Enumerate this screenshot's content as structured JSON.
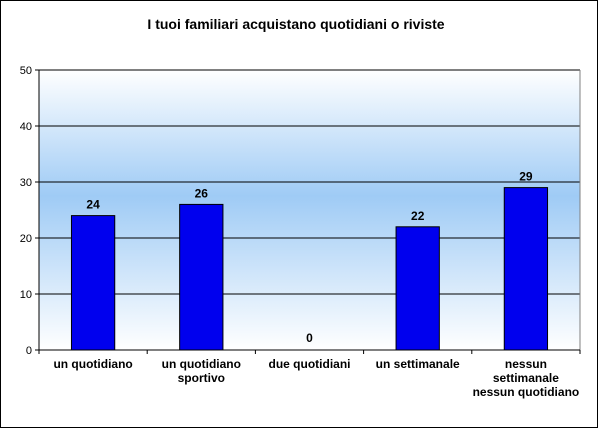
{
  "chart_data": {
    "type": "bar",
    "title": "I tuoi familiari acquistano quotidiani o riviste",
    "categories": [
      [
        "un quotidiano"
      ],
      [
        "un quotidiano",
        "sportivo"
      ],
      [
        "due quotidiani"
      ],
      [
        "un settimanale"
      ],
      [
        "nessun",
        "settimanale",
        "nessun quotidiano"
      ]
    ],
    "values": [
      24,
      26,
      0,
      22,
      29
    ],
    "data_labels": [
      "24",
      "26",
      "0",
      "22",
      "29"
    ],
    "ylim": [
      0,
      50
    ],
    "yticks": [
      "0",
      "10",
      "20",
      "30",
      "40",
      "50"
    ],
    "grid": true,
    "legend": "none",
    "bar_color": "#0000ee",
    "bar_stroke": "#000000"
  }
}
